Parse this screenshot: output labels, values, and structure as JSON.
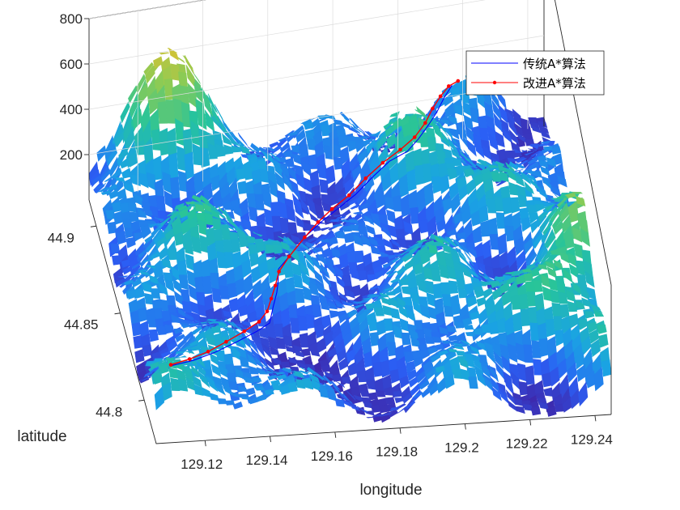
{
  "chart_data": {
    "type": "surface3d",
    "title": "",
    "xlabel": "longitude",
    "ylabel": "latitude",
    "zlabel": "",
    "xlim": [
      129.105,
      129.245
    ],
    "ylim": [
      44.775,
      44.915
    ],
    "zlim": [
      0,
      800
    ],
    "x_ticks": [
      "129.12",
      "129.14",
      "129.16",
      "129.18",
      "129.2",
      "129.22",
      "129.24"
    ],
    "y_ticks": [
      "44.8",
      "44.85",
      "44.9"
    ],
    "z_ticks": [
      "200",
      "400",
      "600",
      "800"
    ],
    "colormap": [
      "#3e26a8",
      "#2b5ff5",
      "#1aa3e3",
      "#26c49b",
      "#8bcb55",
      "#e6c02c",
      "#f9fb0e"
    ],
    "grid": true,
    "legend_position": "top-right",
    "series": [
      {
        "name": "传统A*算法",
        "style": "line",
        "color": "#0000ff",
        "x": [
          129.112,
          129.119,
          129.126,
          129.133,
          129.14,
          129.144,
          129.146,
          129.148,
          129.149,
          129.15,
          129.154,
          129.16,
          129.166,
          129.172,
          129.178,
          129.184,
          129.19,
          129.196,
          129.2,
          129.204,
          129.207,
          129.21,
          129.213
        ],
        "y": [
          44.7915,
          44.7925,
          44.7945,
          44.7975,
          44.8005,
          44.803,
          44.809,
          44.815,
          44.819,
          44.825,
          44.83,
          44.838,
          44.844,
          44.849,
          44.854,
          44.86,
          44.865,
          44.868,
          44.872,
          44.877,
          44.881,
          44.886,
          44.89
        ],
        "z": [
          280,
          290,
          305,
          320,
          340,
          350,
          370,
          380,
          390,
          395,
          400,
          405,
          410,
          415,
          420,
          430,
          445,
          450,
          460,
          470,
          480,
          490,
          500
        ]
      },
      {
        "name": "改进A*算法",
        "style": "line-marker",
        "color": "#ff0000",
        "x": [
          129.112,
          129.118,
          129.124,
          129.13,
          129.136,
          129.141,
          129.144,
          129.146,
          129.148,
          129.15,
          129.154,
          129.16,
          129.165,
          129.17,
          129.176,
          129.182,
          129.188,
          129.194,
          129.199,
          129.203,
          129.206,
          129.209,
          129.212,
          129.215
        ],
        "y": [
          44.792,
          44.7935,
          44.7955,
          44.7985,
          44.8015,
          44.8045,
          44.808,
          44.813,
          44.818,
          44.824,
          44.83,
          44.838,
          44.844,
          44.849,
          44.854,
          44.86,
          44.865,
          44.869,
          44.873,
          44.878,
          44.883,
          44.887,
          44.89,
          44.891
        ],
        "z": [
          280,
          288,
          300,
          315,
          332,
          345,
          360,
          372,
          385,
          392,
          400,
          405,
          410,
          415,
          420,
          430,
          442,
          452,
          460,
          468,
          478,
          488,
          498,
          505
        ]
      }
    ]
  }
}
